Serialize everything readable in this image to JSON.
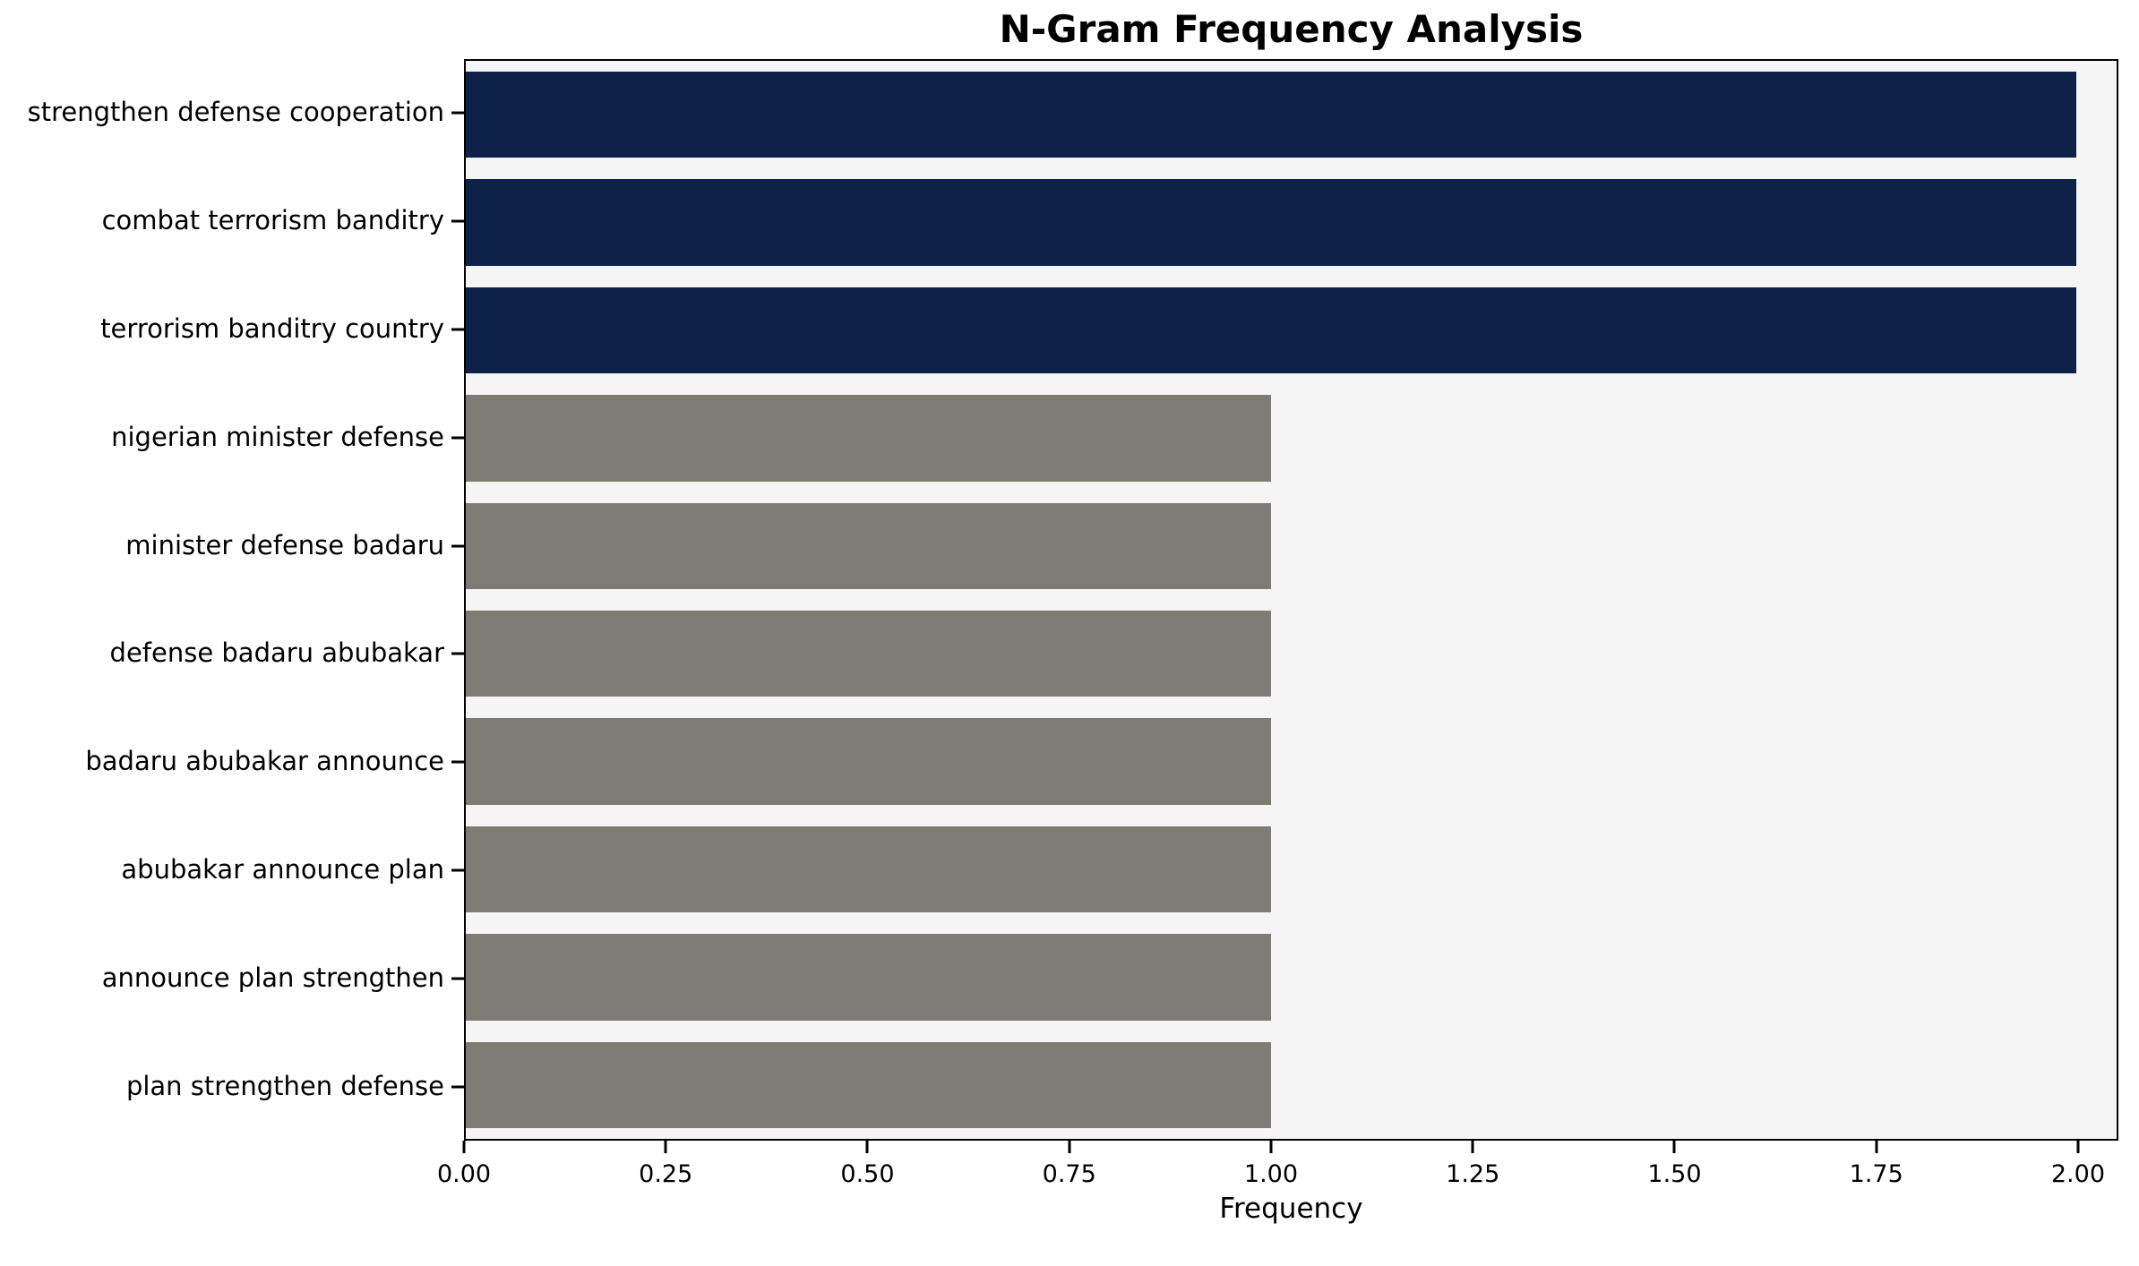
{
  "title": "N-Gram Frequency Analysis",
  "chart_data": {
    "type": "bar",
    "orientation": "horizontal",
    "title": "N-Gram Frequency Analysis",
    "xlabel": "Frequency",
    "ylabel": "",
    "categories": [
      "strengthen defense cooperation",
      "combat terrorism banditry",
      "terrorism banditry country",
      "nigerian minister defense",
      "minister defense badaru",
      "defense badaru abubakar",
      "badaru abubakar announce",
      "abubakar announce plan",
      "announce plan strengthen",
      "plan strengthen defense"
    ],
    "values": [
      2,
      2,
      2,
      1,
      1,
      1,
      1,
      1,
      1,
      1
    ],
    "bar_colors": [
      "#0d2149",
      "#0d2149",
      "#0d2149",
      "#7d7c74",
      "#7d7c74",
      "#7d7c74",
      "#7d7c74",
      "#7d7c74",
      "#7d7c74",
      "#7d7c74"
    ],
    "xlim": [
      0,
      2.05
    ],
    "x_tick_values": [
      0,
      0.25,
      0.5,
      0.75,
      1.0,
      1.25,
      1.5,
      1.75,
      2.0
    ],
    "x_tick_labels": [
      "0.00",
      "0.25",
      "0.50",
      "0.75",
      "1.00",
      "1.25",
      "1.50",
      "1.75",
      "2.00"
    ],
    "plot_background": "#f5f5f5",
    "figure_background": "#ffffff",
    "grid": false,
    "legend": "none",
    "bar_height_fraction": 0.8
  }
}
